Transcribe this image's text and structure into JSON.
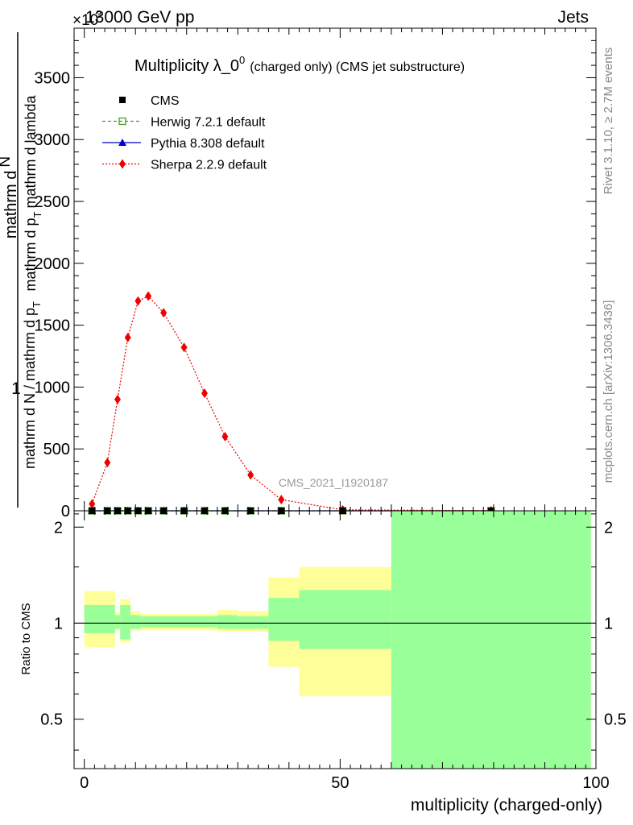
{
  "header": {
    "energy_label": "13000 GeV pp",
    "process_label": "Jets",
    "exponent_label": "×10",
    "exponent_power": "3"
  },
  "side_labels": {
    "rivet": "Rivet 3.1.10, ≥ 2.7M events",
    "mcplots": "mcplots.cern.ch [arXiv:1306.3436]"
  },
  "chart_data": [
    {
      "type": "line",
      "title_main": "Multiplicity λ_0",
      "title_sup": "0",
      "title_small": "(charged only) (CMS jet substructure)",
      "ylabel_numerator_a": "mathrm d",
      "ylabel_numerator_b": "N",
      "ylabel_numerator_c": "mathrm d p",
      "ylabel_numerator_d": "T",
      "ylabel_numerator_e": "mathrm d lambda",
      "ylabel_denominator_a": "mathrm d N / mathrm d p",
      "ylabel_denominator_b": "T",
      "ylabel_one": "1",
      "watermark": "CMS_2021_I1920187",
      "xlim": [
        -2,
        100
      ],
      "ylim": [
        0,
        3900
      ],
      "y_ticks": [
        0,
        500,
        1000,
        1500,
        2000,
        2500,
        3000,
        3500
      ],
      "y_tick_labels": [
        "0",
        "500",
        "1000",
        "1500",
        "2000",
        "2500",
        "3000",
        "3500"
      ],
      "legend_position": "top-left",
      "series": [
        {
          "name": "CMS",
          "color": "#000000",
          "marker": "square",
          "line": "none",
          "x": [
            1.5,
            4.5,
            6.5,
            8.5,
            10.5,
            12.5,
            15.5,
            19.5,
            23.5,
            27.5,
            32.5,
            38.5,
            50.5,
            79.5
          ],
          "y": [
            0,
            0,
            0,
            0,
            0,
            0,
            0,
            0,
            0,
            0,
            0,
            0,
            0,
            0
          ]
        },
        {
          "name": "Herwig 7.2.1 default",
          "color": "#4b9b22",
          "marker": "open-square",
          "line": "dashed",
          "x": [
            1.5,
            4.5,
            6.5,
            8.5,
            10.5,
            12.5,
            15.5,
            19.5,
            23.5,
            27.5,
            32.5,
            38.5,
            50.5,
            79.5
          ],
          "y": [
            0,
            0,
            0,
            0,
            0,
            0,
            0,
            0,
            0,
            0,
            0,
            0,
            0,
            0
          ]
        },
        {
          "name": "Pythia 8.308 default",
          "color": "#0000cc",
          "marker": "triangle",
          "line": "solid",
          "x": [
            1.5,
            4.5,
            6.5,
            8.5,
            10.5,
            12.5,
            15.5,
            19.5,
            23.5,
            27.5,
            32.5,
            38.5,
            50.5,
            79.5
          ],
          "y": [
            0,
            0,
            0,
            0,
            0,
            0,
            0,
            0,
            0,
            0,
            0,
            0,
            0,
            0
          ]
        },
        {
          "name": "Sherpa 2.2.9 default",
          "color": "#ee0000",
          "marker": "diamond",
          "line": "dotted",
          "x": [
            1.5,
            4.5,
            6.5,
            8.5,
            10.5,
            12.5,
            15.5,
            19.5,
            23.5,
            27.5,
            32.5,
            38.5,
            50.5,
            79.5
          ],
          "y": [
            55,
            390,
            900,
            1400,
            1695,
            1735,
            1600,
            1320,
            950,
            600,
            290,
            90,
            8,
            1
          ]
        }
      ]
    },
    {
      "type": "area",
      "ylabel": "Ratio to CMS",
      "xlabel": "multiplicity (charged-only)",
      "xlim": [
        -2,
        100
      ],
      "ylim": [
        0.35,
        2.25
      ],
      "x_ticks": [
        0,
        50,
        100
      ],
      "x_tick_labels": [
        "0",
        "50",
        "100"
      ],
      "y_ticks": [
        0.5,
        1,
        2
      ],
      "y_tick_labels": [
        "0.5",
        "1",
        "2"
      ],
      "reference_line": 1,
      "band_colors": {
        "outer": "#ffff99",
        "inner": "#99ff99"
      },
      "bands": [
        {
          "x0": 0,
          "x1": 6,
          "outer": [
            0.84,
            1.26
          ],
          "inner": [
            0.93,
            1.14
          ]
        },
        {
          "x0": 6,
          "x1": 7,
          "outer": [
            0.95,
            1.08
          ],
          "inner": [
            0.96,
            1.06
          ]
        },
        {
          "x0": 7,
          "x1": 9,
          "outer": [
            0.87,
            1.19
          ],
          "inner": [
            0.89,
            1.14
          ]
        },
        {
          "x0": 9,
          "x1": 11,
          "outer": [
            0.95,
            1.09
          ],
          "inner": [
            0.96,
            1.06
          ]
        },
        {
          "x0": 11,
          "x1": 26,
          "outer": [
            0.95,
            1.07
          ],
          "inner": [
            0.97,
            1.05
          ]
        },
        {
          "x0": 26,
          "x1": 30,
          "outer": [
            0.94,
            1.1
          ],
          "inner": [
            0.96,
            1.06
          ]
        },
        {
          "x0": 30,
          "x1": 36,
          "outer": [
            0.94,
            1.09
          ],
          "inner": [
            0.96,
            1.05
          ]
        },
        {
          "x0": 36,
          "x1": 42,
          "outer": [
            0.73,
            1.39
          ],
          "inner": [
            0.88,
            1.2
          ]
        },
        {
          "x0": 42,
          "x1": 60,
          "outer": [
            0.59,
            1.5
          ],
          "inner": [
            0.83,
            1.27
          ]
        },
        {
          "x0": 60,
          "x1": 99,
          "outer": [
            0.35,
            2.25
          ],
          "inner": [
            0.35,
            2.25
          ]
        }
      ]
    }
  ]
}
